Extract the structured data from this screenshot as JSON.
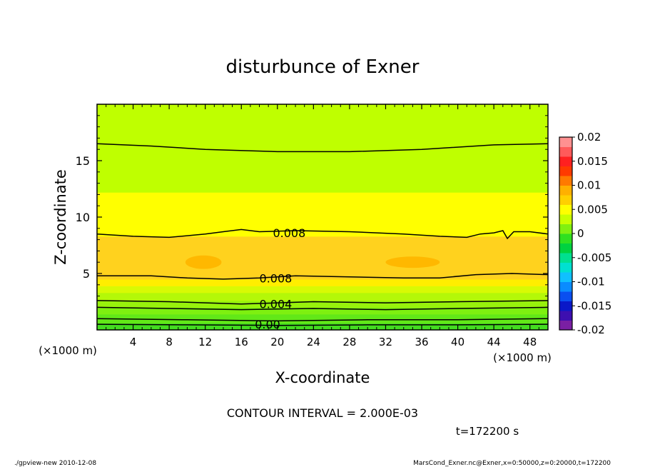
{
  "chart_data": {
    "type": "heatmap",
    "title": "disturbunce of Exner",
    "xlabel": "X-coordinate",
    "ylabel": "Z-coordinate",
    "x_unit_left": "(×1000 m)",
    "x_unit_right": "(×1000 m)",
    "xlim": [
      0,
      50
    ],
    "ylim": [
      0,
      20
    ],
    "x_ticks": [
      4,
      8,
      12,
      16,
      20,
      24,
      28,
      32,
      36,
      40,
      44,
      48
    ],
    "y_ticks": [
      5,
      10,
      15
    ],
    "contour_interval_text": "CONTOUR INTERVAL = 2.000E-03",
    "time_text": "t=172200 s",
    "footer_left": "./gpview-new  2010-12-08",
    "footer_right": "MarsCond_Exner.nc@Exner,x=0:50000,z=0:20000,t=172200",
    "colorbar": {
      "ticks": [
        "0.02",
        "0.015",
        "0.01",
        "0.005",
        "0",
        "-0.005",
        "-0.01",
        "-0.015",
        "-0.02"
      ],
      "range": [
        -0.02,
        0.02
      ],
      "colors": [
        "#7a1fa3",
        "#3d0fb0",
        "#0a18c8",
        "#0a4ff0",
        "#0a8cff",
        "#10c0ff",
        "#00e0d0",
        "#00e090",
        "#00d240",
        "#30e020",
        "#80f010",
        "#c8ff00",
        "#ffff00",
        "#ffd000",
        "#ffb000",
        "#ff7a00",
        "#ff3a00",
        "#ff2020",
        "#ff5a5a",
        "#ff9090"
      ]
    },
    "contour_labels": [
      {
        "text": "0.008",
        "x": 19.5,
        "z": 8.6
      },
      {
        "text": "0.008",
        "x": 18.0,
        "z": 4.6
      },
      {
        "text": "0.004",
        "x": 18.0,
        "z": 2.3
      },
      {
        "text": "0.00",
        "x": 17.5,
        "z": 0.5
      }
    ],
    "bands": [
      {
        "z0": 0.0,
        "z1": 0.6,
        "color": "#44dd20"
      },
      {
        "z0": 0.6,
        "z1": 1.4,
        "color": "#62e818"
      },
      {
        "z0": 1.4,
        "z1": 2.0,
        "color": "#7ef010"
      },
      {
        "z0": 2.0,
        "z1": 2.6,
        "color": "#98f20c"
      },
      {
        "z0": 2.6,
        "z1": 3.3,
        "color": "#b4f808"
      },
      {
        "z0": 3.3,
        "z1": 3.9,
        "color": "#d8fa04"
      },
      {
        "z0": 3.9,
        "z1": 4.5,
        "color": "#ffee00"
      },
      {
        "z0": 4.5,
        "z1": 8.3,
        "color": "#ffd21e"
      },
      {
        "z0": 8.3,
        "z1": 12.2,
        "color": "#ffff00"
      },
      {
        "z0": 12.2,
        "z1": 20.0,
        "color": "#bfff00"
      }
    ],
    "contours": [
      {
        "name": "top",
        "points": [
          [
            0,
            16.5
          ],
          [
            6,
            16.3
          ],
          [
            12,
            16.0
          ],
          [
            20,
            15.8
          ],
          [
            28,
            15.8
          ],
          [
            36,
            16.0
          ],
          [
            44,
            16.4
          ],
          [
            50,
            16.5
          ]
        ]
      },
      {
        "name": "mid-upper",
        "points": [
          [
            0,
            8.5
          ],
          [
            4,
            8.3
          ],
          [
            8,
            8.2
          ],
          [
            12,
            8.5
          ],
          [
            14,
            8.7
          ],
          [
            16,
            8.9
          ],
          [
            18,
            8.7
          ],
          [
            22,
            8.8
          ],
          [
            28,
            8.7
          ],
          [
            34,
            8.5
          ],
          [
            38,
            8.3
          ],
          [
            41,
            8.2
          ],
          [
            42.5,
            8.5
          ],
          [
            44,
            8.6
          ],
          [
            45,
            8.8
          ],
          [
            45.5,
            8.1
          ],
          [
            46.2,
            8.7
          ],
          [
            48,
            8.7
          ],
          [
            50,
            8.5
          ]
        ]
      },
      {
        "name": "mid-lower",
        "points": [
          [
            0,
            4.8
          ],
          [
            6,
            4.8
          ],
          [
            10,
            4.6
          ],
          [
            14,
            4.5
          ],
          [
            18,
            4.6
          ],
          [
            22,
            4.8
          ],
          [
            28,
            4.7
          ],
          [
            34,
            4.6
          ],
          [
            38,
            4.6
          ],
          [
            42,
            4.9
          ],
          [
            46,
            5.0
          ],
          [
            50,
            4.9
          ]
        ]
      },
      {
        "name": "c3",
        "points": [
          [
            0,
            2.6
          ],
          [
            8,
            2.5
          ],
          [
            16,
            2.3
          ],
          [
            24,
            2.5
          ],
          [
            32,
            2.4
          ],
          [
            40,
            2.5
          ],
          [
            50,
            2.6
          ]
        ]
      },
      {
        "name": "c4",
        "points": [
          [
            0,
            2.0
          ],
          [
            8,
            1.9
          ],
          [
            16,
            1.8
          ],
          [
            24,
            1.9
          ],
          [
            32,
            1.8
          ],
          [
            40,
            1.9
          ],
          [
            50,
            2.0
          ]
        ]
      },
      {
        "name": "c5",
        "points": [
          [
            0,
            1.0
          ],
          [
            10,
            0.9
          ],
          [
            20,
            0.8
          ],
          [
            30,
            0.9
          ],
          [
            40,
            0.9
          ],
          [
            50,
            1.0
          ]
        ]
      },
      {
        "name": "c6",
        "points": [
          [
            0,
            0.5
          ],
          [
            10,
            0.45
          ],
          [
            20,
            0.4
          ],
          [
            30,
            0.45
          ],
          [
            40,
            0.45
          ],
          [
            50,
            0.5
          ]
        ]
      }
    ],
    "blobs": [
      {
        "cx": 11.8,
        "cz": 6.0,
        "rx": 2.0,
        "rz": 0.6,
        "color": "#ffb800"
      },
      {
        "cx": 35.0,
        "cz": 6.0,
        "rx": 3.0,
        "rz": 0.5,
        "color": "#ffb800"
      }
    ]
  }
}
